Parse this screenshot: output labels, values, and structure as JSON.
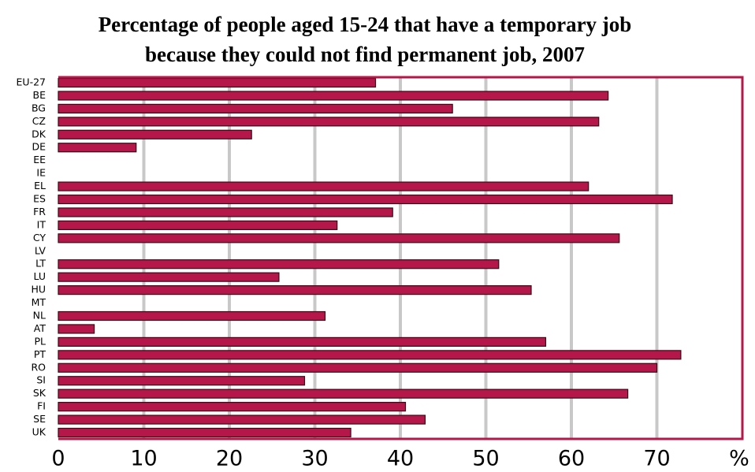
{
  "chart_data": {
    "type": "hbar",
    "title": "Percentage of people aged 15-24 that have a temporary job\nbecause they could not find permanent job, 2007",
    "categories": [
      "EU-27",
      "BE",
      "BG",
      "CZ",
      "DK",
      "DE",
      "EE",
      "IE",
      "EL",
      "ES",
      "FR",
      "IT",
      "CY",
      "LV",
      "LT",
      "LU",
      "HU",
      "MT",
      "NL",
      "AT",
      "PL",
      "PT",
      "RO",
      "SI",
      "SK",
      "FI",
      "SE",
      "UK"
    ],
    "values": [
      37.1,
      64.3,
      46.1,
      63.2,
      22.6,
      9.1,
      null,
      null,
      62.0,
      71.8,
      39.1,
      32.6,
      65.6,
      null,
      51.5,
      25.8,
      55.3,
      null,
      31.2,
      4.2,
      57.0,
      72.8,
      70.0,
      28.8,
      66.6,
      40.6,
      42.9,
      34.2
    ],
    "color": "#b5174a",
    "xlim": [
      0,
      80
    ],
    "xticks": [
      0,
      10,
      20,
      30,
      40,
      50,
      60,
      70
    ],
    "xlabel": "%",
    "grid": true
  }
}
